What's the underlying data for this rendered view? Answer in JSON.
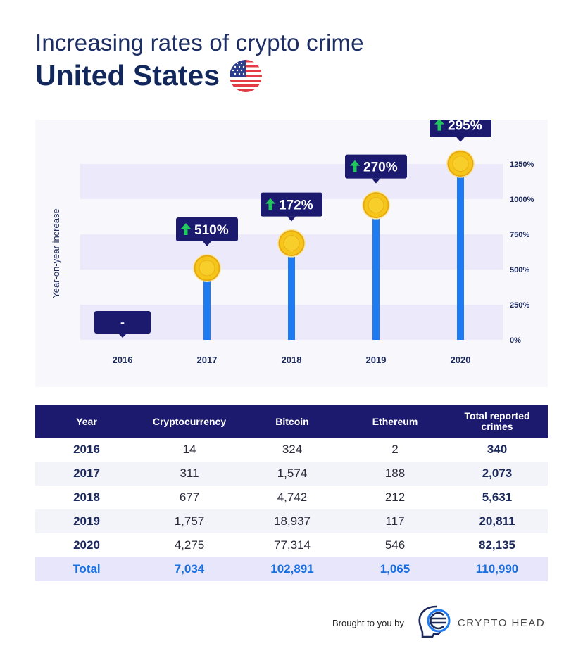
{
  "header": {
    "subtitle": "Increasing rates of crypto crime",
    "title": "United States"
  },
  "chart_data": {
    "type": "bar",
    "ylabel": "Year-on-year increase",
    "y_ticks": [
      "1250%",
      "1000%",
      "750%",
      "500%",
      "250%",
      "0%"
    ],
    "ylim": [
      0,
      1250
    ],
    "categories": [
      "2016",
      "2017",
      "2018",
      "2019",
      "2020"
    ],
    "values": [
      null,
      510,
      172,
      270,
      295
    ],
    "labels": [
      "-",
      "510%",
      "172%",
      "270%",
      "295%"
    ],
    "coin_levels_percent": [
      0,
      510,
      687,
      957,
      1252
    ],
    "colors": {
      "bar": "#1e7bf2",
      "label_bg": "#1b1a6e",
      "coin": "#f6c51a",
      "arrow": "#22c55e",
      "band": "#ebe9fa"
    }
  },
  "table": {
    "headers": [
      "Year",
      "Cryptocurrency",
      "Bitcoin",
      "Ethereum",
      "Total reported crimes"
    ],
    "rows": [
      [
        "2016",
        "14",
        "324",
        "2",
        "340"
      ],
      [
        "2017",
        "311",
        "1,574",
        "188",
        "2,073"
      ],
      [
        "2018",
        "677",
        "4,742",
        "212",
        "5,631"
      ],
      [
        "2019",
        "1,757",
        "18,937",
        "117",
        "20,811"
      ],
      [
        "2020",
        "4,275",
        "77,314",
        "546",
        "82,135"
      ]
    ],
    "total": [
      "Total",
      "7,034",
      "102,891",
      "1,065",
      "110,990"
    ]
  },
  "footer": {
    "brought_by": "Brought to you by",
    "logo": "CRYPTO HEAD"
  }
}
